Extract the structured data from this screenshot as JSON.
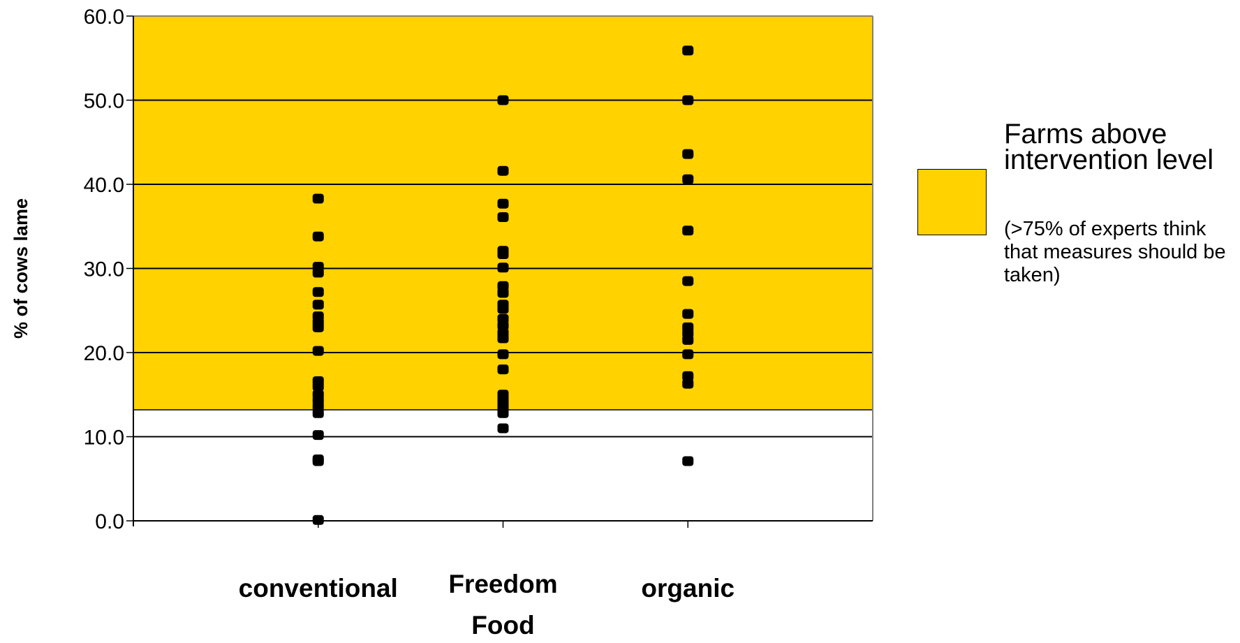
{
  "chart_data": {
    "type": "scatter",
    "categories": [
      "conventional",
      "Freedom Food",
      "organic"
    ],
    "ylabel": "% of cows lame",
    "xlabel": "",
    "ylim": [
      0,
      60
    ],
    "yticks": [
      "0.0",
      "10.0",
      "20.0",
      "30.0",
      "40.0",
      "50.0",
      "60.0"
    ],
    "grid": true,
    "intervention_level": 13.2,
    "band_color": "#FFD200",
    "point_color": "#000000",
    "legend": {
      "placement": "right",
      "title": "Farms above intervention level",
      "note": "(>75% of experts think that measures should be taken)"
    },
    "series": [
      {
        "category": "conventional",
        "values": [
          38.3,
          33.8,
          30.2,
          29.5,
          27.2,
          25.7,
          24.3,
          23.6,
          23.0,
          20.2,
          16.6,
          16.0,
          15.0,
          14.3,
          13.6,
          12.8,
          10.2,
          7.3,
          7.1,
          0.1
        ]
      },
      {
        "category": "Freedom Food",
        "values": [
          50.0,
          41.6,
          37.7,
          36.1,
          32.1,
          31.7,
          30.1,
          27.9,
          27.1,
          25.7,
          25.2,
          24.0,
          23.2,
          22.3,
          21.7,
          19.8,
          18.0,
          15.0,
          14.5,
          14.0,
          13.4,
          12.8,
          11.0
        ]
      },
      {
        "category": "organic",
        "values": [
          55.9,
          50.0,
          43.6,
          40.6,
          34.5,
          28.5,
          24.6,
          23.0,
          22.3,
          21.5,
          19.8,
          17.2,
          16.3,
          7.1
        ]
      }
    ]
  }
}
